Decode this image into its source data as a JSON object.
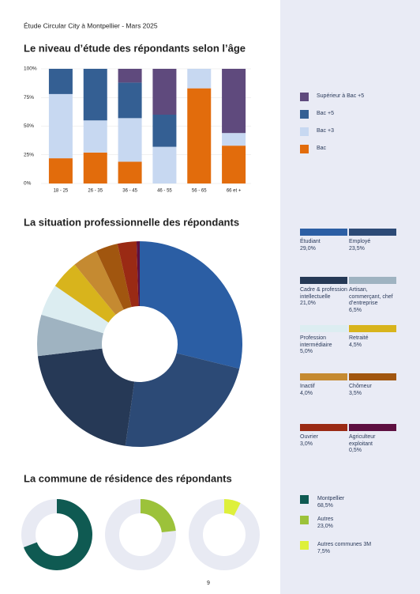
{
  "header": {
    "title": "Étude Circular City à Montpellier - Mars 2025"
  },
  "page_number": "9",
  "chart_data": [
    {
      "type": "bar",
      "stacked": true,
      "title": "Le niveau d’étude des répondants selon l’âge",
      "categories": [
        "18 - 25",
        "26 - 35",
        "36 - 45",
        "46 - 55",
        "56 - 65",
        "66 et +"
      ],
      "series": [
        {
          "name": "Supérieur à Bac +5",
          "color": "#5f4a7d",
          "values": [
            0,
            0,
            12,
            40,
            0,
            56
          ]
        },
        {
          "name": "Bac +5",
          "color": "#345f93",
          "values": [
            22,
            45,
            31,
            28,
            0,
            0
          ]
        },
        {
          "name": "Bac +3",
          "color": "#c7d8f1",
          "values": [
            56,
            28,
            38,
            32,
            17,
            11
          ]
        },
        {
          "name": "Bac",
          "color": "#e26c0c",
          "values": [
            22,
            27,
            19,
            0,
            83,
            33
          ]
        }
      ],
      "ylim": [
        0,
        100
      ],
      "yticks": [
        {
          "value": 0,
          "label": "0%"
        },
        {
          "value": 25,
          "label": "25%"
        },
        {
          "value": 50,
          "label": "50%"
        },
        {
          "value": 75,
          "label": "75%"
        },
        {
          "value": 100,
          "label": "100%"
        }
      ],
      "grid": true
    },
    {
      "type": "donut",
      "title": "La situation professionnelle des répondants",
      "categories": [
        "Étudiant",
        "Employé",
        "Cadre & profession intellectuelle",
        "Artisan, commerçant, chef d’entreprise",
        "Profession intermédiaire",
        "Retraité",
        "Inactif",
        "Chômeur",
        "Ouvrier",
        "Agriculteur exploitant"
      ],
      "values": [
        29,
        23.5,
        21,
        6.5,
        5,
        4.5,
        4,
        3.5,
        3,
        0.5
      ],
      "value_labels": [
        "29,0%",
        "23,5%",
        "21,0%",
        "6,5%",
        "5,0%",
        "4,5%",
        "4,0%",
        "3,5%",
        "3,0%",
        "0,5%"
      ],
      "colors": [
        "#2b5ea4",
        "#2c4a76",
        "#263956",
        "#9fb3c1",
        "#dcedf1",
        "#d8b41c",
        "#c58a31",
        "#a1560f",
        "#9a2a14",
        "#5d0f40"
      ]
    },
    {
      "type": "rings",
      "title": "La commune de résidence des répondants",
      "categories": [
        "Montpellier",
        "Autres",
        "Autres communes 3M"
      ],
      "values": [
        68.5,
        23,
        7.5
      ],
      "value_labels": [
        "68,5%",
        "23,0%",
        "7,5%"
      ],
      "colors": [
        "#0f5a52",
        "#9cc23a",
        "#def03b"
      ]
    }
  ]
}
